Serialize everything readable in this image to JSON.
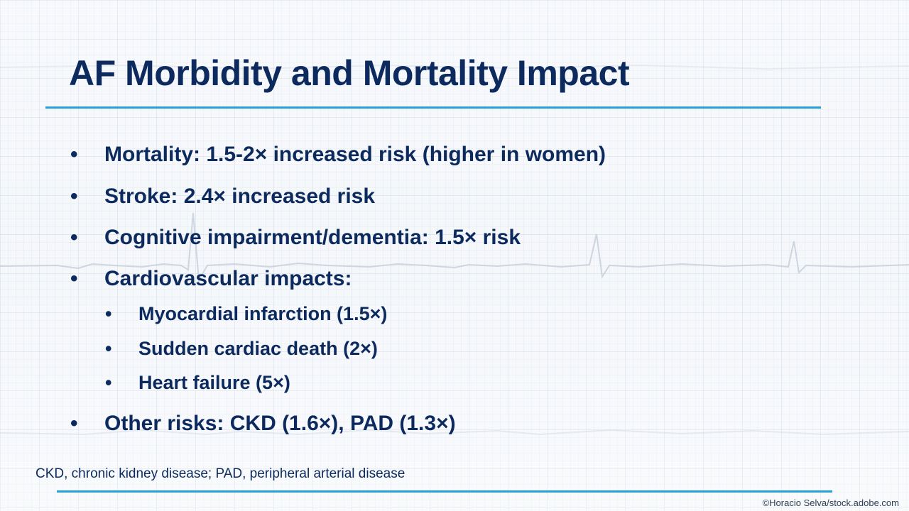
{
  "slide": {
    "title": "AF Morbidity and Mortality Impact",
    "bullets": [
      {
        "level": 1,
        "text": "Mortality: 1.5-2× increased risk (higher in women)"
      },
      {
        "level": 1,
        "text": "Stroke: 2.4× increased risk"
      },
      {
        "level": 1,
        "text": "Cognitive impairment/dementia: 1.5× risk"
      },
      {
        "level": 1,
        "text": "Cardiovascular impacts:"
      },
      {
        "level": 2,
        "text": "Myocardial infarction (1.5×)"
      },
      {
        "level": 2,
        "text": "Sudden cardiac death (2×)"
      },
      {
        "level": 2,
        "text": "Heart failure (5×)"
      },
      {
        "level": 1,
        "text": "Other risks: CKD (1.6×), PAD (1.3×)"
      }
    ],
    "bullet_symbol": "•",
    "footnote": "CKD, chronic kidney disease; PAD, peripheral arterial disease",
    "credit": "©Horacio Selva/stock.adobe.com"
  },
  "colors": {
    "title": "#0d2a5e",
    "accent_rule": "#2a9fd4",
    "background": "#f3f6fa"
  }
}
